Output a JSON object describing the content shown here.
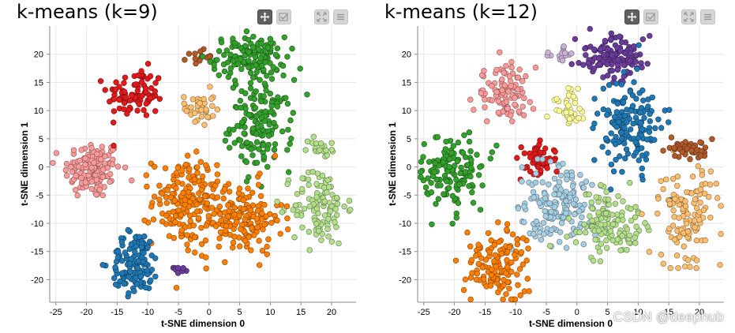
{
  "chart_data": [
    {
      "type": "scatter",
      "title": "k-means (k=9)",
      "xlabel": "t-SNE dimension 0",
      "ylabel": "t-SNE dimension 1",
      "xlim": [
        -26,
        24
      ],
      "ylim": [
        -24,
        25
      ],
      "xticks": [
        -25,
        -20,
        -15,
        -10,
        -5,
        0,
        5,
        10,
        15,
        20
      ],
      "yticks": [
        -20,
        -15,
        -10,
        -5,
        0,
        5,
        10,
        15,
        20
      ],
      "grid": true,
      "clusters": [
        {
          "name": "cluster-pink",
          "color": "#fb9a99",
          "cx": -19,
          "cy": -0.5,
          "sx": 2.3,
          "sy": 2.6,
          "n": 140
        },
        {
          "name": "cluster-red",
          "color": "#e31a1c",
          "cx": -12,
          "cy": 13,
          "sx": 2.3,
          "sy": 2.2,
          "n": 90
        },
        {
          "name": "cluster-brown",
          "color": "#b15928",
          "cx": -1.5,
          "cy": 19.5,
          "sx": 1.0,
          "sy": 0.6,
          "n": 15
        },
        {
          "name": "cluster-light-orange",
          "color": "#fdbf6f",
          "cx": -1.5,
          "cy": 10.5,
          "sx": 1.2,
          "sy": 1.6,
          "n": 40
        },
        {
          "name": "cluster-green",
          "color": "#33a02c",
          "cx": 6.5,
          "cy": 19.5,
          "sx": 3.0,
          "sy": 1.8,
          "n": 130
        },
        {
          "name": "cluster-green",
          "color": "#33a02c",
          "cx": 8.5,
          "cy": 7.5,
          "sx": 2.5,
          "sy": 4.0,
          "n": 150
        },
        {
          "name": "cluster-orange",
          "color": "#ff7f00",
          "cx": -4,
          "cy": -6,
          "sx": 2.6,
          "sy": 4.0,
          "n": 160
        },
        {
          "name": "cluster-orange",
          "color": "#ff7f00",
          "cx": 5,
          "cy": -9,
          "sx": 3.5,
          "sy": 3.2,
          "n": 170
        },
        {
          "name": "cluster-light-green",
          "color": "#b2df8a",
          "cx": 18,
          "cy": -7,
          "sx": 2.2,
          "sy": 3.5,
          "n": 110
        },
        {
          "name": "cluster-light-green",
          "color": "#b2df8a",
          "cx": 18.5,
          "cy": 3.5,
          "sx": 1.2,
          "sy": 0.9,
          "n": 20
        },
        {
          "name": "cluster-blue",
          "color": "#1f78b4",
          "cx": -12,
          "cy": -17,
          "sx": 2.0,
          "sy": 2.8,
          "n": 130
        },
        {
          "name": "cluster-purple",
          "color": "#6a3d9a",
          "cx": -5,
          "cy": -18,
          "sx": 0.8,
          "sy": 0.4,
          "n": 8
        }
      ]
    },
    {
      "type": "scatter",
      "title": "k-means (k=12)",
      "xlabel": "t-SNE dimension 0",
      "ylabel": "t-SNE dimension 1",
      "xlim": [
        -26,
        24
      ],
      "ylim": [
        -24,
        25
      ],
      "xticks": [
        -25,
        -20,
        -15,
        -10,
        -5,
        0,
        5,
        10,
        15,
        20
      ],
      "yticks": [
        -20,
        -15,
        -10,
        -5,
        0,
        5,
        10,
        15,
        20
      ],
      "grid": true,
      "clusters": [
        {
          "name": "cluster-pink",
          "color": "#fb9a99",
          "cx": -12,
          "cy": 13,
          "sx": 2.4,
          "sy": 2.4,
          "n": 100
        },
        {
          "name": "cluster-lavender",
          "color": "#cab2d6",
          "cx": -2,
          "cy": 20,
          "sx": 1.2,
          "sy": 0.7,
          "n": 15
        },
        {
          "name": "cluster-purple",
          "color": "#6a3d9a",
          "cx": 6,
          "cy": 19.5,
          "sx": 3.0,
          "sy": 1.8,
          "n": 130
        },
        {
          "name": "cluster-yellow",
          "color": "#ffff99",
          "cx": -1.5,
          "cy": 10.5,
          "sx": 1.3,
          "sy": 1.7,
          "n": 40
        },
        {
          "name": "cluster-blue",
          "color": "#1f78b4",
          "cx": 8.5,
          "cy": 7.5,
          "sx": 2.5,
          "sy": 4.0,
          "n": 150
        },
        {
          "name": "cluster-green",
          "color": "#33a02c",
          "cx": -20,
          "cy": -1,
          "sx": 2.6,
          "sy": 3.2,
          "n": 140
        },
        {
          "name": "cluster-red",
          "color": "#e31a1c",
          "cx": -6,
          "cy": 1.5,
          "sx": 1.5,
          "sy": 1.8,
          "n": 50
        },
        {
          "name": "cluster-light-blue",
          "color": "#a6cee3",
          "cx": -3,
          "cy": -7,
          "sx": 3.0,
          "sy": 3.5,
          "n": 160
        },
        {
          "name": "cluster-light-green",
          "color": "#b2df8a",
          "cx": 5,
          "cy": -10,
          "sx": 2.8,
          "sy": 2.8,
          "n": 130
        },
        {
          "name": "cluster-light-orange",
          "color": "#fdbf6f",
          "cx": 18,
          "cy": -9,
          "sx": 2.4,
          "sy": 4.5,
          "n": 120
        },
        {
          "name": "cluster-brown",
          "color": "#b15928",
          "cx": 18,
          "cy": 3.3,
          "sx": 2.0,
          "sy": 1.0,
          "n": 40
        },
        {
          "name": "cluster-orange",
          "color": "#ff7f00",
          "cx": -13,
          "cy": -17,
          "sx": 2.3,
          "sy": 3.0,
          "n": 140
        }
      ]
    }
  ],
  "toolbar": {
    "pan_icon": "pan-icon",
    "select_icon": "box-select-icon",
    "zoom_icon": "reset-zoom-icon",
    "menu_icon": "hamburger-menu-icon"
  },
  "watermark": "CSDN @deephub"
}
